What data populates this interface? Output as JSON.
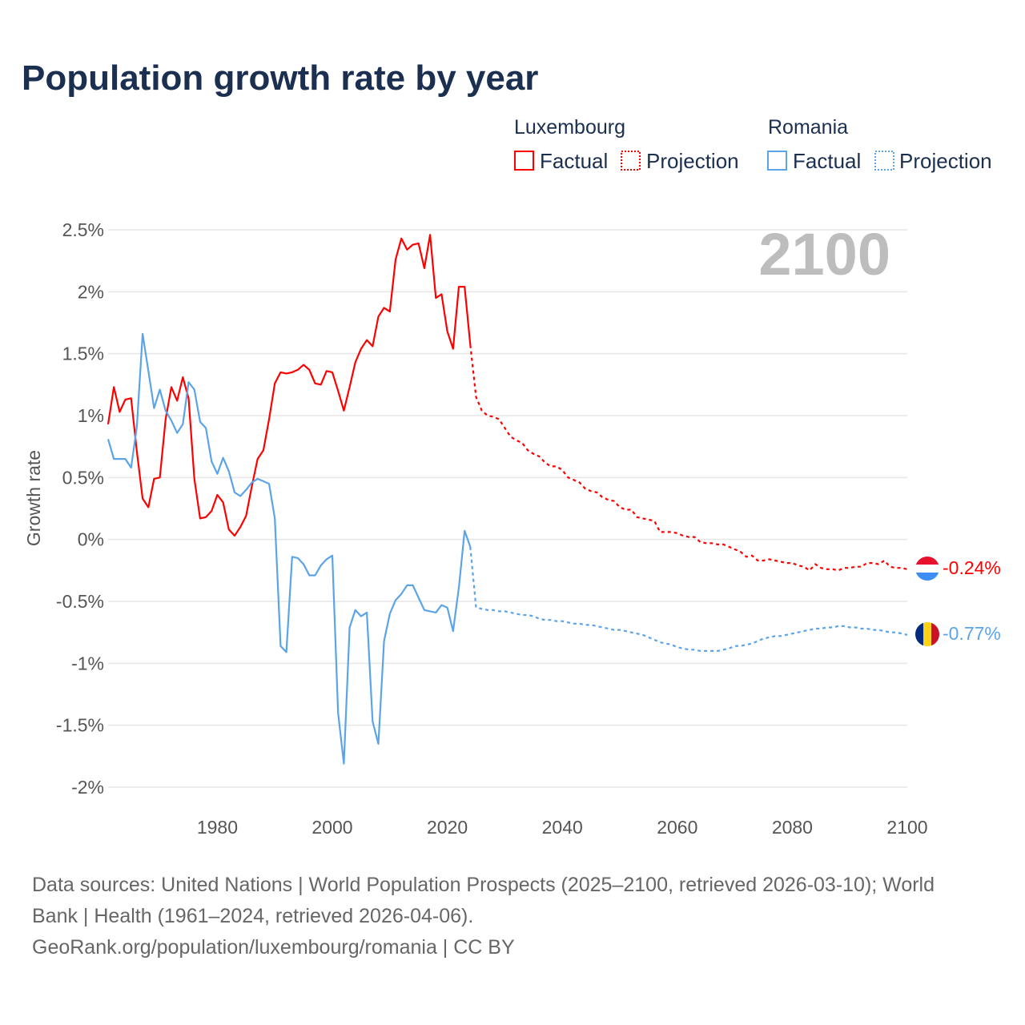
{
  "chart_data": {
    "type": "line",
    "title": "Population growth rate by year",
    "xlabel": "",
    "ylabel": "Growth rate",
    "xlim": [
      1961,
      2100
    ],
    "ylim": [
      -2,
      2.5
    ],
    "grid": true,
    "current_year_label": "2100",
    "x_ticks": [
      1980,
      2000,
      2020,
      2040,
      2060,
      2080,
      2100
    ],
    "x_tick_labels": [
      "1980",
      "2000",
      "2020",
      "2040",
      "2060",
      "2080",
      "2100"
    ],
    "y_ticks": [
      2.5,
      2,
      1.5,
      1,
      0.5,
      0,
      -0.5,
      -1,
      -1.5,
      -2
    ],
    "y_tick_labels": [
      "2.5%",
      "2%",
      "1.5%",
      "1%",
      "0.5%",
      "0%",
      "-0.5%",
      "-1%",
      "-1.5%",
      "-2%"
    ],
    "legend": {
      "placement": "top-right",
      "groups": [
        {
          "name": "Luxembourg",
          "factual": "Factual",
          "projection": "Projection",
          "color": "#ff0000"
        },
        {
          "name": "Romania",
          "factual": "Factual",
          "projection": "Projection",
          "color": "#5ba4e8"
        }
      ]
    },
    "series": [
      {
        "name": "Luxembourg",
        "color": "#ff0000",
        "end_label": "-0.24%",
        "factual_start_year": 1961,
        "factual": [
          0.93,
          1.23,
          1.03,
          1.13,
          1.14,
          0.71,
          0.33,
          0.26,
          0.49,
          0.5,
          0.97,
          1.23,
          1.12,
          1.31,
          1.14,
          0.49,
          0.17,
          0.18,
          0.23,
          0.36,
          0.3,
          0.08,
          0.03,
          0.1,
          0.19,
          0.43,
          0.65,
          0.72,
          0.97,
          1.26,
          1.35,
          1.34,
          1.35,
          1.37,
          1.41,
          1.37,
          1.26,
          1.25,
          1.36,
          1.35,
          1.2,
          1.04,
          1.23,
          1.43,
          1.54,
          1.61,
          1.56,
          1.8,
          1.87,
          1.84,
          2.26,
          2.43,
          2.34,
          2.38,
          2.39,
          2.19,
          2.46,
          1.95,
          1.98,
          1.68,
          1.54,
          2.04,
          2.04,
          1.57
        ],
        "projection_start_year": 2025,
        "projection": [
          1.15,
          1.04,
          1.0,
          0.99,
          0.97,
          0.9,
          0.83,
          0.8,
          0.78,
          0.72,
          0.69,
          0.67,
          0.62,
          0.59,
          0.59,
          0.56,
          0.5,
          0.48,
          0.46,
          0.41,
          0.39,
          0.38,
          0.34,
          0.32,
          0.31,
          0.26,
          0.24,
          0.24,
          0.18,
          0.17,
          0.16,
          0.15,
          0.06,
          0.06,
          0.06,
          0.05,
          0.03,
          0.02,
          0.02,
          -0.02,
          -0.03,
          -0.03,
          -0.04,
          -0.04,
          -0.06,
          -0.08,
          -0.1,
          -0.14,
          -0.13,
          -0.17,
          -0.17,
          -0.16,
          -0.17,
          -0.18,
          -0.19,
          -0.19,
          -0.21,
          -0.22,
          -0.25,
          -0.2,
          -0.23,
          -0.24,
          -0.24,
          -0.25,
          -0.23,
          -0.23,
          -0.22,
          -0.22,
          -0.19,
          -0.19,
          -0.2,
          -0.17,
          -0.22,
          -0.23,
          -0.23,
          -0.24
        ]
      },
      {
        "name": "Romania",
        "color": "#5ba4e8",
        "end_label": "-0.77%",
        "factual_start_year": 1961,
        "factual": [
          0.81,
          0.65,
          0.65,
          0.65,
          0.58,
          0.91,
          1.66,
          1.36,
          1.06,
          1.21,
          1.04,
          0.96,
          0.86,
          0.93,
          1.27,
          1.21,
          0.95,
          0.9,
          0.63,
          0.53,
          0.66,
          0.55,
          0.38,
          0.35,
          0.4,
          0.46,
          0.49,
          0.47,
          0.45,
          0.17,
          -0.86,
          -0.91,
          -0.14,
          -0.15,
          -0.2,
          -0.29,
          -0.29,
          -0.21,
          -0.16,
          -0.13,
          -1.4,
          -1.81,
          -0.71,
          -0.57,
          -0.62,
          -0.59,
          -1.47,
          -1.65,
          -0.82,
          -0.6,
          -0.49,
          -0.44,
          -0.37,
          -0.37,
          -0.47,
          -0.57,
          -0.58,
          -0.59,
          -0.53,
          -0.55,
          -0.74,
          -0.39,
          0.07,
          -0.06
        ],
        "projection_start_year": 2025,
        "projection": [
          -0.55,
          -0.56,
          -0.57,
          -0.57,
          -0.58,
          -0.58,
          -0.59,
          -0.6,
          -0.61,
          -0.61,
          -0.62,
          -0.64,
          -0.65,
          -0.65,
          -0.66,
          -0.66,
          -0.67,
          -0.68,
          -0.68,
          -0.69,
          -0.69,
          -0.7,
          -0.71,
          -0.72,
          -0.73,
          -0.73,
          -0.74,
          -0.75,
          -0.76,
          -0.77,
          -0.79,
          -0.81,
          -0.83,
          -0.84,
          -0.85,
          -0.87,
          -0.88,
          -0.89,
          -0.89,
          -0.9,
          -0.9,
          -0.9,
          -0.9,
          -0.89,
          -0.88,
          -0.86,
          -0.86,
          -0.85,
          -0.84,
          -0.82,
          -0.8,
          -0.79,
          -0.78,
          -0.78,
          -0.77,
          -0.76,
          -0.75,
          -0.74,
          -0.73,
          -0.72,
          -0.72,
          -0.71,
          -0.71,
          -0.7,
          -0.7,
          -0.71,
          -0.71,
          -0.72,
          -0.72,
          -0.73,
          -0.73,
          -0.74,
          -0.75,
          -0.75,
          -0.76,
          -0.77
        ]
      }
    ]
  },
  "footer": {
    "line1": "Data sources: United Nations | World Population Prospects (2025–2100, retrieved 2026-03-10); World",
    "line2": "Bank | Health (1961–2024, retrieved 2026-04-06).",
    "line3": "GeoRank.org/population/luxembourg/romania | CC BY"
  }
}
